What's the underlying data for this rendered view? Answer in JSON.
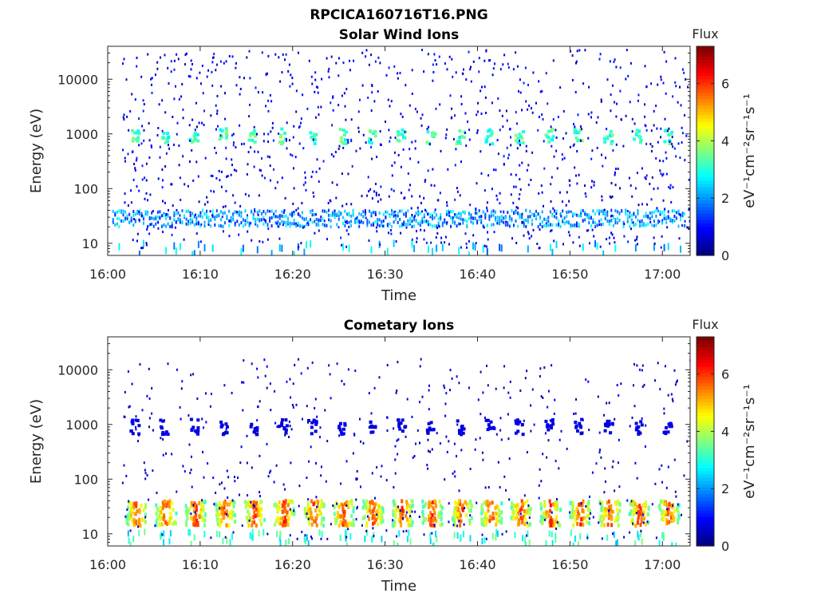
{
  "figure": {
    "title": "RPCICA160716T16.PNG"
  },
  "chart_data": [
    {
      "type": "heatmap",
      "title": "Solar Wind Ions",
      "xlabel": "Time",
      "ylabel": "Energy (eV)",
      "x_ticks": [
        "16:00",
        "16:10",
        "16:20",
        "16:30",
        "16:40",
        "16:50",
        "17:00"
      ],
      "x_range": [
        "16:00",
        "17:03"
      ],
      "y_scale": "log",
      "y_ticks": [
        "10",
        "100",
        "1000",
        "10000"
      ],
      "y_range": [
        6,
        40000
      ],
      "colorbar": {
        "title": "Flux",
        "units": "eV⁻¹cm⁻²sr⁻¹s⁻¹",
        "ticks": [
          "0",
          "2",
          "4",
          "6"
        ],
        "range": [
          0,
          7.3
        ],
        "colormap": "jet"
      },
      "features": [
        {
          "name": "1 keV periodic bursts",
          "energy_eV": 900,
          "flux_level": 3.2,
          "period_min": 3.2,
          "first_min": 2.8,
          "last_min": 61.5
        },
        {
          "name": "low energy band",
          "energy_min_eV": 20,
          "energy_max_eV": 40,
          "flux_level": 2.2,
          "start_min": 0.5,
          "end_min": 62.5
        },
        {
          "name": "scattered background",
          "energy_min_eV": 8,
          "energy_max_eV": 35000,
          "flux_level": 0.8
        }
      ]
    },
    {
      "type": "heatmap",
      "title": "Cometary Ions",
      "xlabel": "Time",
      "ylabel": "Energy (eV)",
      "x_ticks": [
        "16:00",
        "16:10",
        "16:20",
        "16:30",
        "16:40",
        "16:50",
        "17:00"
      ],
      "x_range": [
        "16:00",
        "17:03"
      ],
      "y_scale": "log",
      "y_ticks": [
        "10",
        "100",
        "1000",
        "10000"
      ],
      "y_range": [
        6,
        40000
      ],
      "colorbar": {
        "title": "Flux",
        "units": "eV⁻¹cm⁻²sr⁻¹s⁻¹",
        "ticks": [
          "0",
          "2",
          "4",
          "6"
        ],
        "range": [
          0,
          7.3
        ],
        "colormap": "jet"
      },
      "features": [
        {
          "name": "1 keV periodic bursts",
          "energy_eV": 900,
          "flux_level": 0.7,
          "period_min": 3.2,
          "first_min": 2.8,
          "last_min": 61.5
        },
        {
          "name": "low energy periodic bursts",
          "energy_min_eV": 14,
          "energy_max_eV": 40,
          "flux_level": 4.8,
          "period_min": 3.2,
          "first_min": 3.0,
          "last_min": 61.5
        },
        {
          "name": "scattered background",
          "energy_min_eV": 8,
          "energy_max_eV": 16000,
          "flux_level": 0.6
        }
      ]
    }
  ]
}
